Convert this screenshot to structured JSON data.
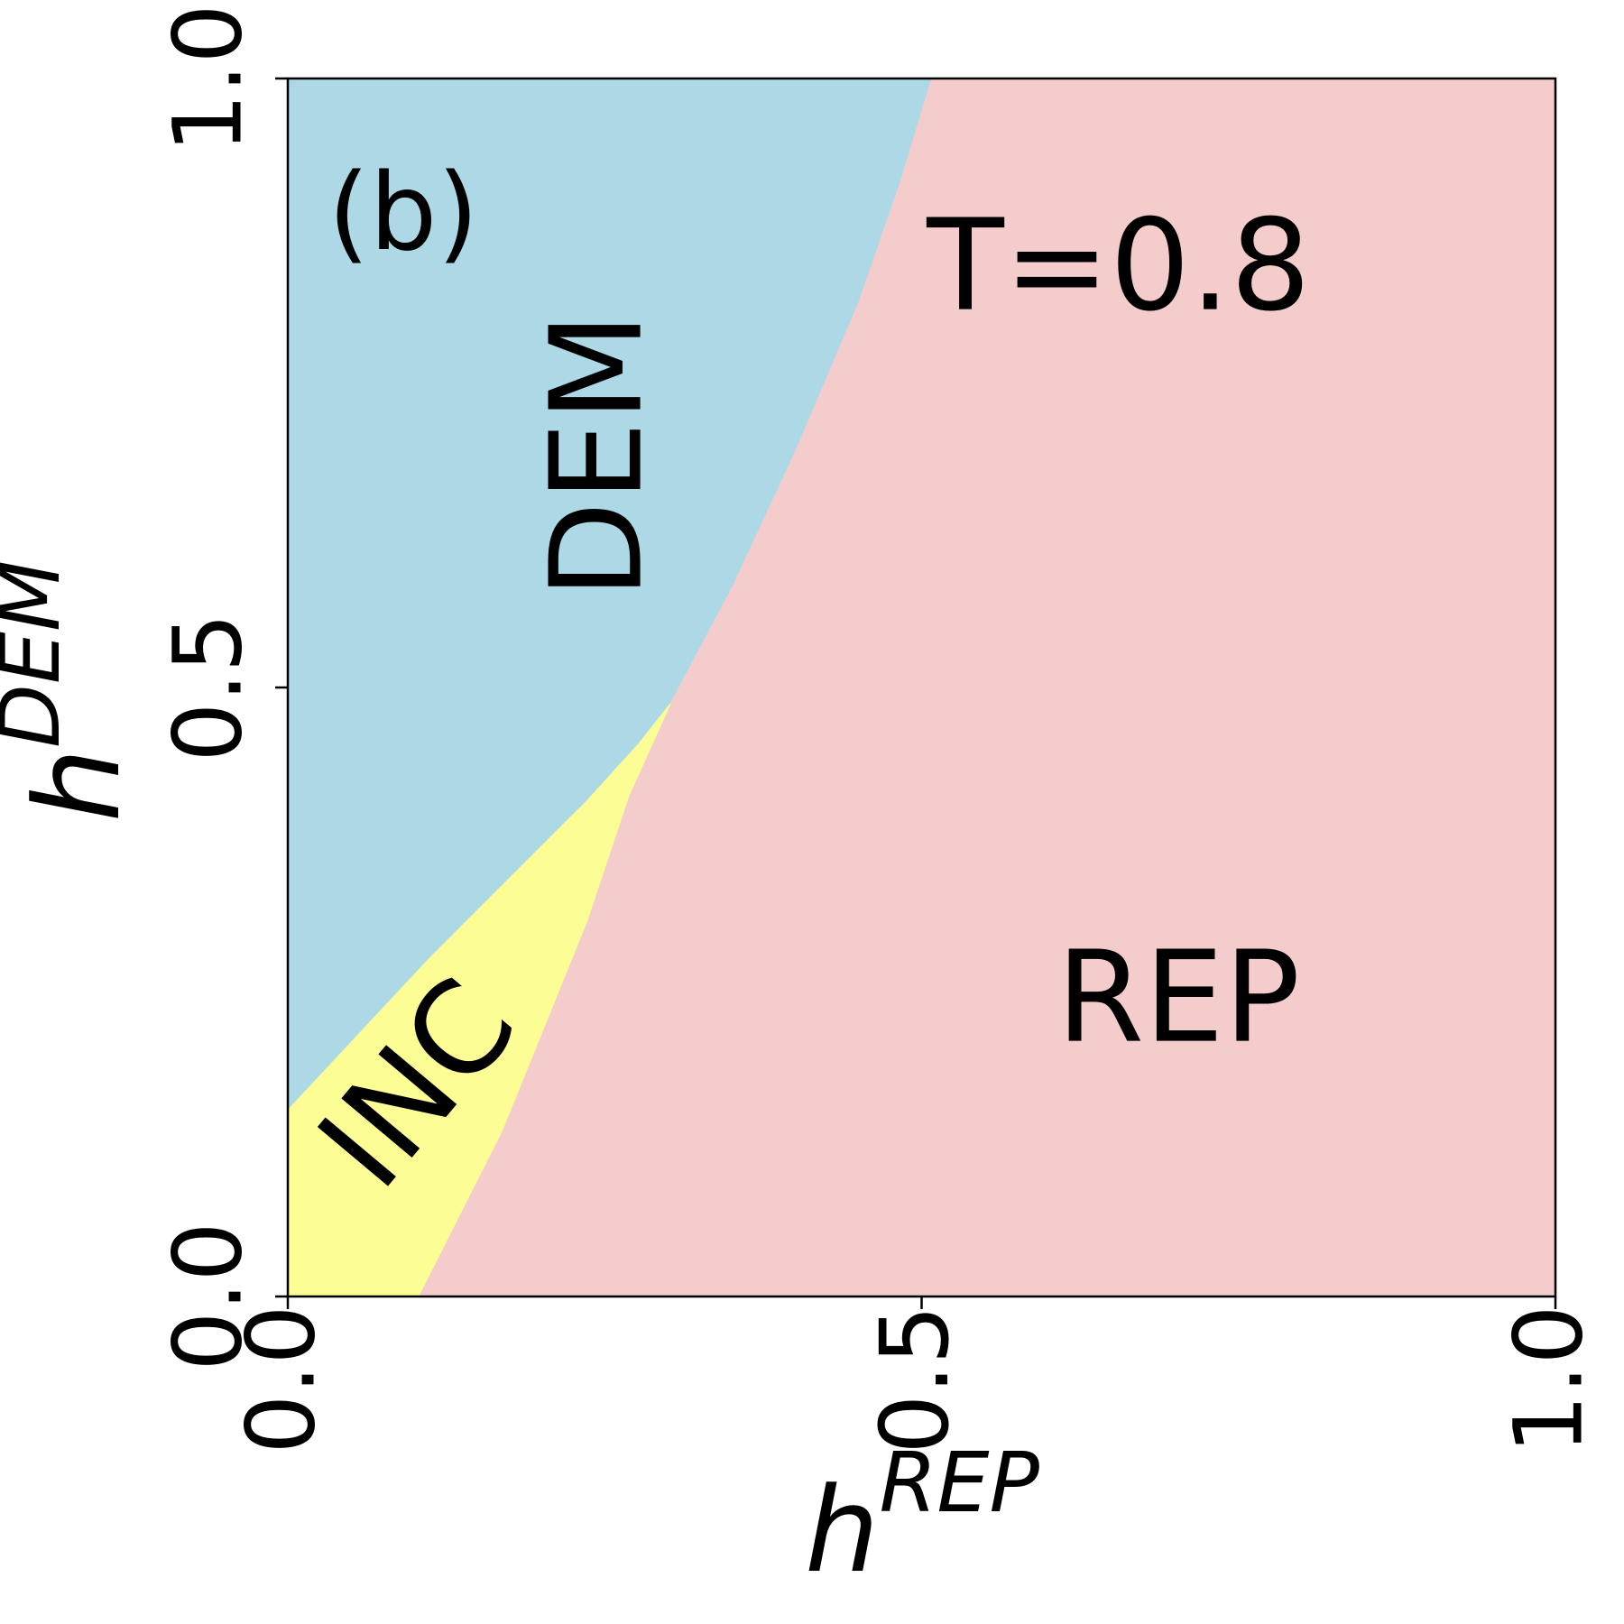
{
  "chart_data": {
    "type": "area",
    "annotations": [
      "(b)",
      "T=0.8"
    ],
    "xlabel": "h",
    "xlabel_sup": "REP",
    "ylabel": "h",
    "ylabel_sup": "DEM",
    "xlim": [
      0,
      1
    ],
    "ylim": [
      0,
      1
    ],
    "xticks": [
      {
        "value": 0,
        "label": "0.0"
      },
      {
        "value": 0.5,
        "label": "0.5"
      },
      {
        "value": 1,
        "label": "1.0"
      }
    ],
    "yticks": [
      {
        "value": 0,
        "label": "0.0"
      },
      {
        "value": 0.5,
        "label": "0.5"
      },
      {
        "value": 1,
        "label": "1.0"
      }
    ],
    "series": [
      {
        "name": "DEM",
        "color": "#add8e6",
        "x": [
          0,
          0.112,
          0.236,
          0.277,
          0.302,
          0.351,
          0.401,
          0.45,
          0.483,
          0.508,
          0
        ],
        "y": [
          0.153,
          0.278,
          0.407,
          0.454,
          0.487,
          0.583,
          0.695,
          0.815,
          0.914,
          1,
          1
        ]
      },
      {
        "name": "REP",
        "color": "#f4cccc",
        "x": [
          0.103,
          0.169,
          0.236,
          0.269,
          0.302,
          0.351,
          0.401,
          0.45,
          0.483,
          0.508,
          1,
          1
        ],
        "y": [
          0,
          0.136,
          0.308,
          0.411,
          0.487,
          0.583,
          0.695,
          0.815,
          0.914,
          1,
          1,
          0
        ]
      },
      {
        "name": "INC",
        "color": "#fdfd96",
        "x": [
          0,
          0.103,
          0.169,
          0.236,
          0.269,
          0.302,
          0.277,
          0.236,
          0.112,
          0
        ],
        "y": [
          0,
          0,
          0.136,
          0.308,
          0.411,
          0.487,
          0.454,
          0.407,
          0.278,
          0.153
        ]
      }
    ]
  }
}
